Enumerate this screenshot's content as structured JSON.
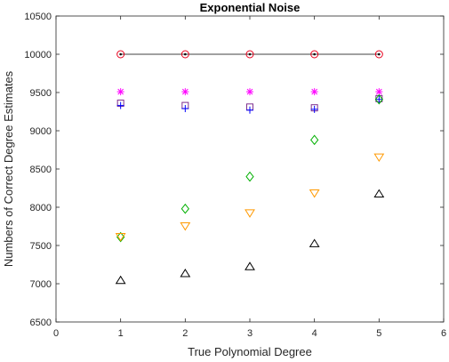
{
  "chart_data": {
    "type": "scatter",
    "title": "Exponential Noise",
    "xlabel": "True Polynomial Degree",
    "ylabel": "Numbers of Correct Degree Estimates",
    "xlim": [
      0,
      6
    ],
    "ylim": [
      6500,
      10500
    ],
    "xticks": [
      "0",
      "1",
      "2",
      "3",
      "4",
      "5",
      "6"
    ],
    "yticks": [
      "6500",
      "7000",
      "7500",
      "8000",
      "8500",
      "9000",
      "9500",
      "10000",
      "10500"
    ],
    "grid": false,
    "x": [
      1,
      2,
      3,
      4,
      5
    ],
    "series": [
      {
        "marker": "circle-dot",
        "color": "#e8001c",
        "line": "#000000",
        "values": [
          10000,
          10000,
          10000,
          10000,
          10000
        ]
      },
      {
        "marker": "asterisk",
        "color": "#ff00ff",
        "values": [
          9510,
          9510,
          9510,
          9510,
          9510
        ]
      },
      {
        "marker": "square",
        "color": "#7e2f8e",
        "values": [
          9360,
          9330,
          9310,
          9300,
          9420
        ]
      },
      {
        "marker": "plus",
        "color": "#0000ff",
        "values": [
          9330,
          9290,
          9270,
          9280,
          9410
        ]
      },
      {
        "marker": "diamond",
        "color": "#00b000",
        "values": [
          7610,
          7980,
          8400,
          8880,
          9410
        ]
      },
      {
        "marker": "triangle-down",
        "color": "#ff9900",
        "values": [
          7610,
          7750,
          7920,
          8180,
          8650
        ]
      },
      {
        "marker": "triangle-up",
        "color": "#000000",
        "values": [
          7050,
          7140,
          7230,
          7530,
          8180
        ]
      }
    ]
  }
}
